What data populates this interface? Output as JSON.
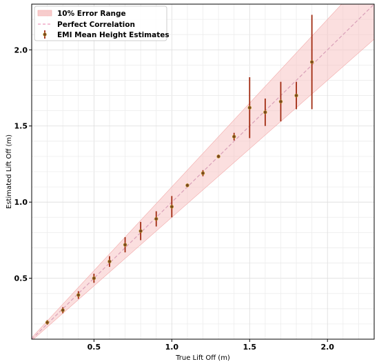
{
  "chart_data": {
    "type": "scatter",
    "title": "",
    "xlabel": "True Lift Off (m)",
    "ylabel": "Estimated Lift Off (m)",
    "xlim": [
      0.1,
      2.3
    ],
    "ylim": [
      0.1,
      2.3
    ],
    "xticks": [
      0.5,
      1.0,
      1.5,
      2.0
    ],
    "xtick_labels": [
      "0.5",
      "1.0",
      "1.5",
      "2.0"
    ],
    "yticks": [
      0.5,
      1.0,
      1.5,
      2.0
    ],
    "ytick_labels": [
      "0.5",
      "1.0",
      "1.5",
      "2.0"
    ],
    "grid": true,
    "legend_position": "top-left",
    "legend": [
      {
        "label": "10% Error Range",
        "kind": "band",
        "color": "#f4b7b7"
      },
      {
        "label": "Perfect Correlation",
        "kind": "dashed-line",
        "color": "#ee99bb"
      },
      {
        "label": "EMI Mean Height Estimates",
        "kind": "errorbar",
        "color": "#7a4a1e"
      }
    ],
    "error_band": {
      "name": "10% Error Range",
      "relative_error": 0.1,
      "color": "#f7c4c4"
    },
    "reference_line": {
      "name": "Perfect Correlation",
      "slope": 1,
      "color": "#d9a0b8"
    },
    "series": [
      {
        "name": "EMI Mean Height Estimates",
        "marker_color": "#7a4a1e",
        "errorbar_color": "#a02a10",
        "x": [
          0.2,
          0.3,
          0.4,
          0.5,
          0.6,
          0.7,
          0.8,
          0.9,
          1.0,
          1.1,
          1.2,
          1.3,
          1.4,
          1.5,
          1.6,
          1.7,
          1.8,
          1.9
        ],
        "y": [
          0.21,
          0.29,
          0.39,
          0.5,
          0.61,
          0.72,
          0.81,
          0.89,
          0.97,
          1.11,
          1.19,
          1.3,
          1.43,
          1.62,
          1.59,
          1.66,
          1.7,
          1.92
        ],
        "yerr": [
          0.015,
          0.02,
          0.025,
          0.03,
          0.035,
          0.05,
          0.06,
          0.05,
          0.07,
          0.012,
          0.02,
          0.012,
          0.025,
          0.2,
          0.09,
          0.13,
          0.09,
          0.31
        ]
      }
    ]
  }
}
